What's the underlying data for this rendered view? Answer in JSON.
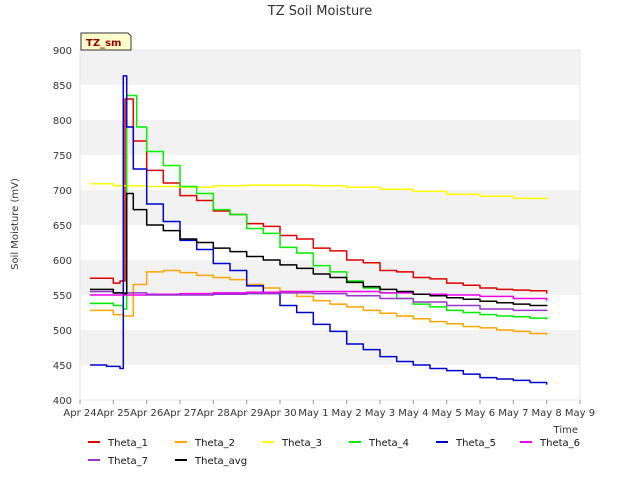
{
  "chart_data": {
    "type": "line",
    "title": "TZ Soil Moisture",
    "xlabel": "Time",
    "ylabel": "Soil Moisture (mV)",
    "badge": "TZ_sm",
    "ylim": [
      400,
      900
    ],
    "yticks": [
      400,
      450,
      500,
      550,
      600,
      650,
      700,
      750,
      800,
      850,
      900
    ],
    "xlim": [
      0,
      15
    ],
    "xticks": [
      {
        "x": 0,
        "label": "Apr 24"
      },
      {
        "x": 1,
        "label": "Apr 25"
      },
      {
        "x": 2,
        "label": "Apr 26"
      },
      {
        "x": 3,
        "label": "Apr 27"
      },
      {
        "x": 4,
        "label": "Apr 28"
      },
      {
        "x": 5,
        "label": "Apr 29"
      },
      {
        "x": 6,
        "label": "Apr 30"
      },
      {
        "x": 7,
        "label": "May 1"
      },
      {
        "x": 8,
        "label": "May 2"
      },
      {
        "x": 9,
        "label": "May 3"
      },
      {
        "x": 10,
        "label": "May 4"
      },
      {
        "x": 11,
        "label": "May 5"
      },
      {
        "x": 12,
        "label": "May 6"
      },
      {
        "x": 13,
        "label": "May 7"
      },
      {
        "x": 14,
        "label": "May 8"
      },
      {
        "x": 15,
        "label": "May 9"
      }
    ],
    "x_unit_note": "x values are days after Apr 24 00:00",
    "grid": "horizontal bands",
    "legend_position": "bottom",
    "series": [
      {
        "name": "Theta_1",
        "color": "#dd0000",
        "x": [
          0.3,
          1.0,
          1.2,
          1.35,
          1.6,
          2.0,
          2.5,
          3.0,
          3.5,
          4.0,
          4.5,
          5.0,
          5.5,
          6.0,
          6.5,
          7.0,
          7.5,
          8.0,
          8.5,
          9.0,
          9.5,
          10.0,
          10.5,
          11.0,
          11.5,
          12.0,
          12.5,
          13.0,
          13.5,
          14.0
        ],
        "y": [
          574,
          567,
          570,
          830,
          770,
          728,
          710,
          692,
          685,
          670,
          665,
          652,
          648,
          635,
          630,
          617,
          613,
          600,
          596,
          585,
          583,
          575,
          573,
          567,
          564,
          560,
          558,
          557,
          556,
          552
        ]
      },
      {
        "name": "Theta_2",
        "color": "#ffa500",
        "x": [
          0.3,
          1.0,
          1.3,
          1.6,
          2.0,
          2.5,
          3.0,
          3.5,
          4.0,
          4.5,
          5.0,
          5.5,
          6.0,
          6.5,
          7.0,
          7.5,
          8.0,
          8.5,
          9.0,
          9.5,
          10.0,
          10.5,
          11.0,
          11.5,
          12.0,
          12.5,
          13.0,
          13.5,
          14.0
        ],
        "y": [
          528,
          522,
          520,
          565,
          583,
          585,
          582,
          578,
          575,
          572,
          565,
          560,
          555,
          548,
          542,
          537,
          533,
          528,
          524,
          520,
          516,
          512,
          509,
          505,
          503,
          500,
          498,
          495,
          493
        ]
      },
      {
        "name": "Theta_3",
        "color": "#ffff00",
        "x": [
          0.3,
          1.0,
          2.0,
          3.0,
          4.0,
          5.0,
          6.0,
          7.0,
          8.0,
          9.0,
          10.0,
          11.0,
          12.0,
          13.0,
          14.0
        ],
        "y": [
          709,
          706,
          705,
          704,
          706,
          707,
          707,
          706,
          704,
          701,
          698,
          694,
          691,
          688,
          686
        ]
      },
      {
        "name": "Theta_4",
        "color": "#00ee00",
        "x": [
          0.3,
          1.0,
          1.3,
          1.4,
          1.7,
          2.0,
          2.5,
          3.0,
          3.5,
          4.0,
          4.5,
          5.0,
          5.5,
          6.0,
          6.5,
          7.0,
          7.5,
          8.0,
          8.5,
          9.0,
          9.5,
          10.0,
          10.5,
          11.0,
          11.5,
          12.0,
          12.5,
          13.0,
          13.5,
          14.0
        ],
        "y": [
          538,
          535,
          530,
          835,
          790,
          755,
          735,
          705,
          695,
          672,
          665,
          645,
          638,
          618,
          610,
          592,
          583,
          570,
          560,
          553,
          545,
          537,
          533,
          528,
          525,
          522,
          520,
          519,
          517,
          515
        ]
      },
      {
        "name": "Theta_5",
        "color": "#0000cc",
        "x": [
          0.3,
          0.8,
          1.2,
          1.3,
          1.4,
          1.6,
          2.0,
          2.5,
          3.0,
          3.5,
          4.0,
          4.5,
          5.0,
          5.5,
          6.0,
          6.5,
          7.0,
          7.5,
          8.0,
          8.5,
          9.0,
          9.5,
          10.0,
          10.5,
          11.0,
          11.5,
          12.0,
          12.5,
          13.0,
          13.5,
          14.0
        ],
        "y": [
          450,
          448,
          445,
          863,
          790,
          730,
          680,
          655,
          628,
          615,
          595,
          585,
          563,
          553,
          535,
          525,
          508,
          498,
          480,
          472,
          462,
          455,
          450,
          445,
          442,
          437,
          432,
          430,
          428,
          425,
          422
        ]
      },
      {
        "name": "Theta_6",
        "color": "#ee00ee",
        "x": [
          0.3,
          1.0,
          2.0,
          3.0,
          4.0,
          5.0,
          6.0,
          7.0,
          8.0,
          9.0,
          10.0,
          11.0,
          12.0,
          13.0,
          14.0
        ],
        "y": [
          550,
          550,
          551,
          552,
          553,
          554,
          555,
          555,
          555,
          553,
          551,
          550,
          548,
          545,
          542
        ]
      },
      {
        "name": "Theta_7",
        "color": "#9933cc",
        "x": [
          0.3,
          1.0,
          2.0,
          3.0,
          4.0,
          5.0,
          6.0,
          7.0,
          8.0,
          9.0,
          10.0,
          11.0,
          12.0,
          13.0,
          14.0
        ],
        "y": [
          555,
          553,
          550,
          550,
          551,
          552,
          553,
          552,
          549,
          545,
          540,
          535,
          530,
          528,
          527
        ]
      },
      {
        "name": "Theta_avg",
        "color": "#000000",
        "x": [
          0.3,
          1.0,
          1.3,
          1.4,
          1.6,
          2.0,
          2.5,
          3.0,
          3.5,
          4.0,
          4.5,
          5.0,
          5.5,
          6.0,
          6.5,
          7.0,
          7.5,
          8.0,
          8.5,
          9.0,
          9.5,
          10.0,
          10.5,
          11.0,
          11.5,
          12.0,
          12.5,
          13.0,
          13.5,
          14.0
        ],
        "y": [
          558,
          553,
          552,
          695,
          672,
          650,
          642,
          630,
          625,
          617,
          612,
          605,
          600,
          593,
          588,
          580,
          575,
          568,
          562,
          558,
          555,
          551,
          549,
          546,
          544,
          541,
          539,
          537,
          535,
          534
        ]
      }
    ]
  }
}
